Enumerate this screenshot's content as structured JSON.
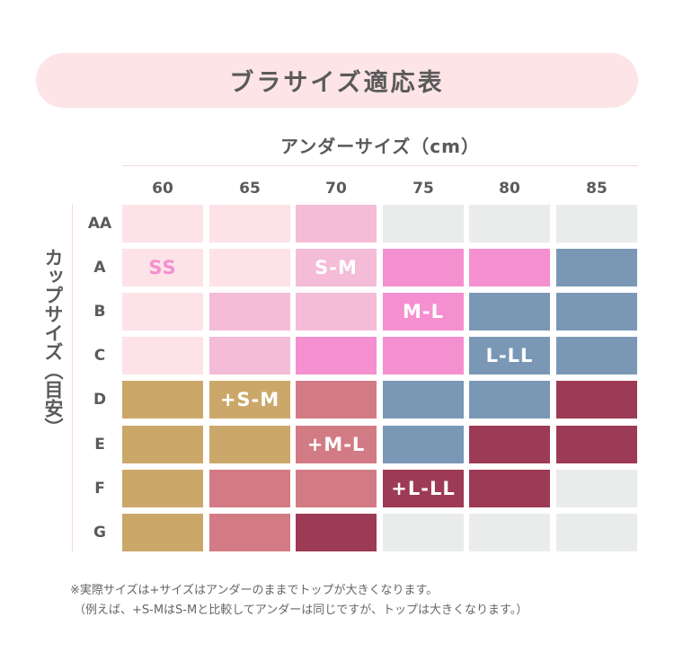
{
  "title": "ブラサイズ適応表",
  "under_label": "アンダーサイズ（cm）",
  "cup_label": "カップサイズ（目安）",
  "columns": [
    "60",
    "65",
    "70",
    "75",
    "80",
    "85"
  ],
  "rows": [
    "AA",
    "A",
    "B",
    "C",
    "D",
    "E",
    "F",
    "G"
  ],
  "colors": {
    "SS": "#fde3e7",
    "SM": "#f4bcd6",
    "ML": "#f590d0",
    "LLL": "#7a98b6",
    "pSM": "#cba86a",
    "pML": "#d27b84",
    "pLLL": "#9d3a55",
    "none": "#e9ecea"
  },
  "grid": [
    [
      "SS",
      "SS",
      "SM",
      "none",
      "none",
      "none"
    ],
    [
      "SS",
      "SS",
      "SM",
      "ML",
      "ML",
      "LLL"
    ],
    [
      "SS",
      "SM",
      "SM",
      "ML",
      "LLL",
      "LLL"
    ],
    [
      "SS",
      "SM",
      "ML",
      "ML",
      "LLL",
      "LLL"
    ],
    [
      "pSM",
      "pSM",
      "pML",
      "LLL",
      "LLL",
      "pLLL"
    ],
    [
      "pSM",
      "pSM",
      "pML",
      "LLL",
      "pLLL",
      "pLLL"
    ],
    [
      "pSM",
      "pML",
      "pML",
      "pLLL",
      "pLLL",
      "none"
    ],
    [
      "pSM",
      "pML",
      "pLLL",
      "none",
      "none",
      "none"
    ]
  ],
  "labels": {
    "ss": "SS",
    "sm": "S-M",
    "ml": "M-L",
    "llll": "L-LL",
    "plus_sm": "+S-M",
    "plus_ml": "+M-L",
    "plus_llll": "+L-LL"
  },
  "label_colors": {
    "ss": "#f590d0"
  },
  "notes": [
    "※実際サイズは+サイズはアンダーのままでトップが大きくなります。",
    "（例えば、+S-MはS-Mと比較してアンダーは同じですが、トップは大きくなります。）"
  ]
}
